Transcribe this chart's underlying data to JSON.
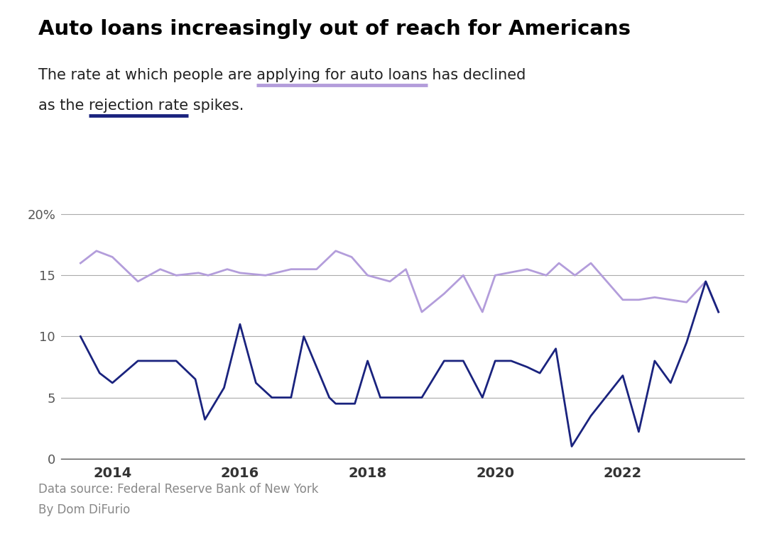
{
  "title": "Auto loans increasingly out of reach for Americans",
  "subtitle_line1": "The rate at which people are applying for auto loans has declined",
  "subtitle_line2": "as the ​rejection rate​ spikes.",
  "footnote1": "Data source: Federal Reserve Bank of New York",
  "footnote2": "By Dom DiFurio",
  "dark_blue_color": "#1a237e",
  "light_purple_color": "#b39ddb",
  "background_color": "#ffffff",
  "ylim": [
    0,
    21
  ],
  "yticks": [
    0,
    5,
    10,
    15,
    20
  ],
  "ytick_labels": [
    "0",
    "5",
    "10",
    "15",
    "20%"
  ],
  "xtick_labels": [
    "2014",
    "2016",
    "2018",
    "2020",
    "2022"
  ],
  "dark_blue_x": [
    2013.5,
    2013.8,
    2014.0,
    2014.4,
    2014.8,
    2015.0,
    2015.3,
    2015.45,
    2015.75,
    2016.0,
    2016.25,
    2016.5,
    2016.8,
    2017.0,
    2017.4,
    2017.5,
    2017.8,
    2018.0,
    2018.2,
    2018.6,
    2018.85,
    2019.2,
    2019.5,
    2019.8,
    2020.0,
    2020.25,
    2020.5,
    2020.7,
    2020.95,
    2021.2,
    2021.5,
    2022.0,
    2022.25,
    2022.5,
    2022.75,
    2023.0,
    2023.3,
    2023.5
  ],
  "dark_blue_y": [
    10.0,
    7.0,
    6.2,
    8.0,
    8.0,
    8.0,
    6.5,
    3.2,
    5.8,
    11.0,
    6.2,
    5.0,
    5.0,
    10.0,
    5.0,
    4.5,
    4.5,
    8.0,
    5.0,
    5.0,
    5.0,
    8.0,
    8.0,
    5.0,
    8.0,
    8.0,
    7.5,
    7.0,
    9.0,
    1.0,
    3.5,
    6.8,
    2.2,
    8.0,
    6.2,
    9.5,
    14.5,
    12.0
  ],
  "light_purple_x": [
    2013.5,
    2013.75,
    2014.0,
    2014.4,
    2014.75,
    2015.0,
    2015.35,
    2015.5,
    2015.8,
    2016.0,
    2016.4,
    2016.8,
    2017.2,
    2017.5,
    2017.75,
    2018.0,
    2018.35,
    2018.6,
    2018.85,
    2019.2,
    2019.5,
    2019.8,
    2020.0,
    2020.5,
    2020.8,
    2021.0,
    2021.25,
    2021.5,
    2022.0,
    2022.25,
    2022.5,
    2022.75,
    2023.0,
    2023.3,
    2023.5
  ],
  "light_purple_y": [
    16.0,
    17.0,
    16.5,
    14.5,
    15.5,
    15.0,
    15.2,
    15.0,
    15.5,
    15.2,
    15.0,
    15.5,
    15.5,
    17.0,
    16.5,
    15.0,
    14.5,
    15.5,
    12.0,
    13.5,
    15.0,
    12.0,
    15.0,
    15.5,
    15.0,
    16.0,
    15.0,
    16.0,
    13.0,
    13.0,
    13.2,
    13.0,
    12.8,
    14.5,
    12.0
  ]
}
